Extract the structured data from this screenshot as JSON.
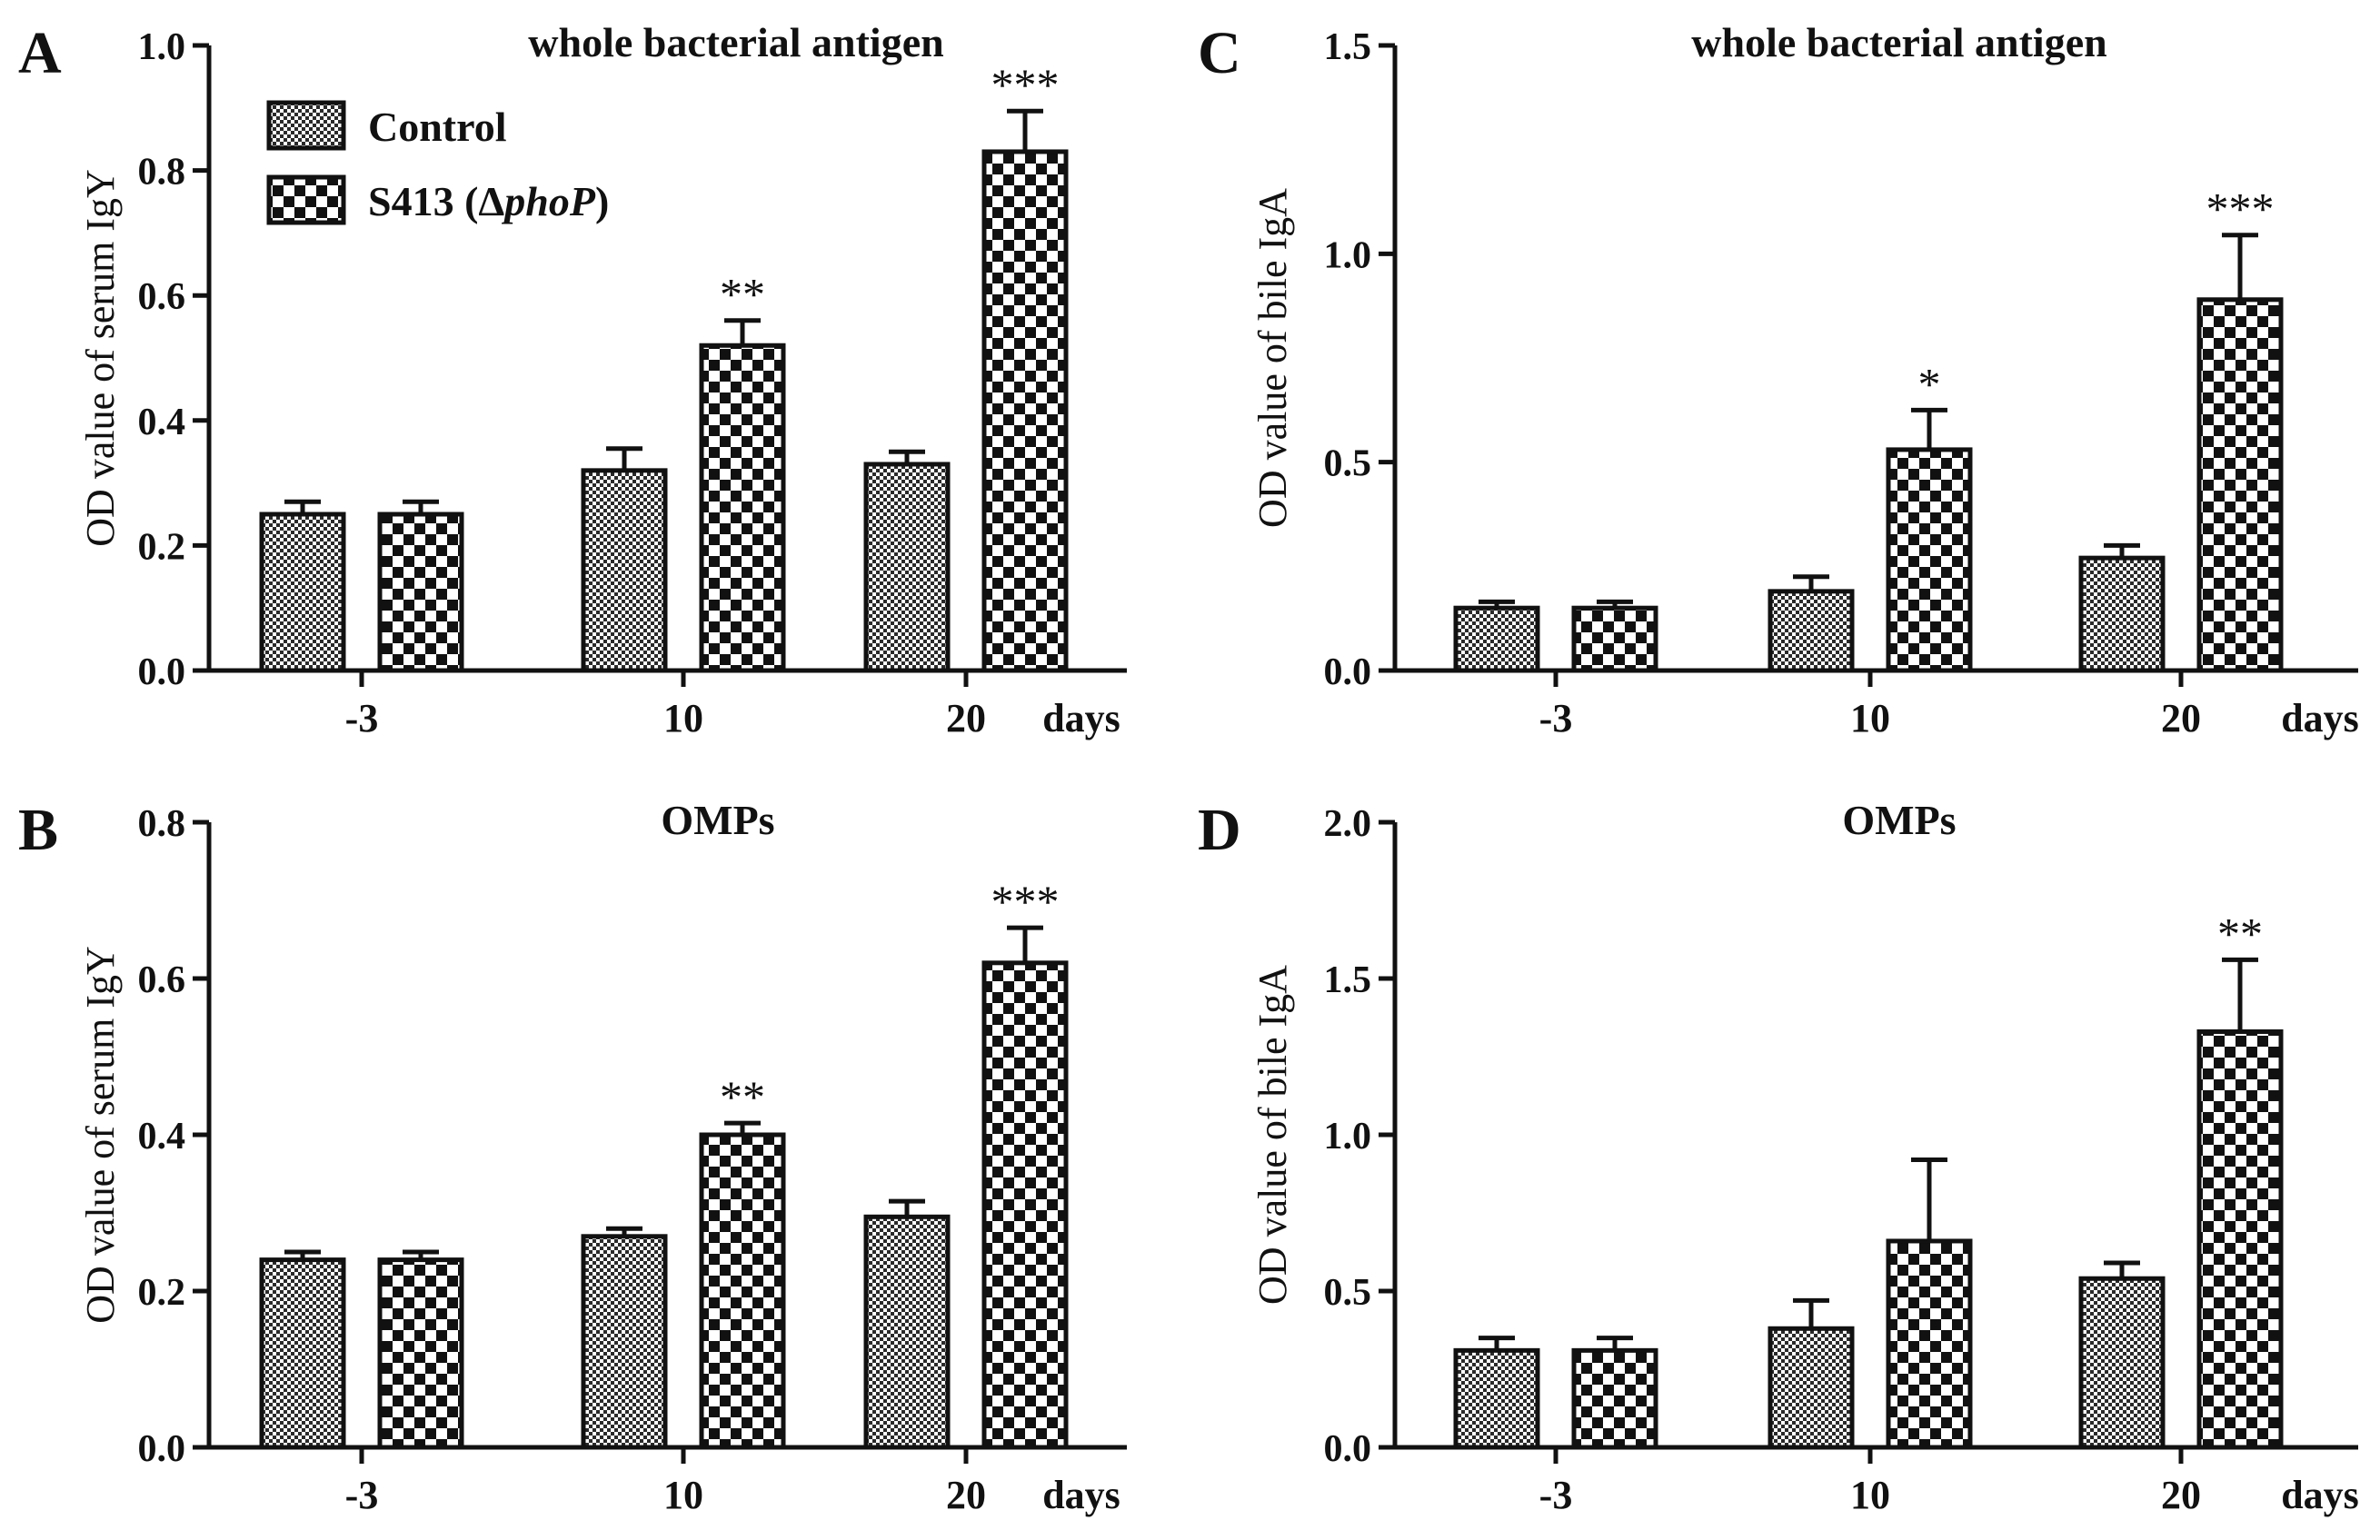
{
  "colors": {
    "ink": "#111111",
    "control_fill": "pattern-fine-check",
    "treated_fill": "pattern-coarse-check"
  },
  "legend": {
    "control_label": "Control",
    "treated_label_prefix": "S413 (Δ",
    "treated_label_italic": "phoP",
    "treated_label_suffix": ")"
  },
  "chart_data": [
    {
      "id": "A",
      "type": "bar",
      "title": "whole bacterial antigen",
      "ylabel": "OD value of serum IgY",
      "xunit": "days",
      "categories": [
        "-3",
        "10",
        "20"
      ],
      "ylim": [
        0,
        1.0
      ],
      "yticks": [
        "0.0",
        "0.2",
        "0.4",
        "0.6",
        "0.8",
        "1.0"
      ],
      "series": [
        {
          "name": "Control",
          "values": [
            0.25,
            0.32,
            0.33
          ],
          "errors": [
            0.02,
            0.035,
            0.02
          ]
        },
        {
          "name": "S413 (ΔphoP)",
          "values": [
            0.25,
            0.52,
            0.83
          ],
          "errors": [
            0.02,
            0.04,
            0.065
          ]
        }
      ],
      "significance": [
        "",
        "**",
        "***"
      ],
      "show_legend": true
    },
    {
      "id": "B",
      "type": "bar",
      "title": "OMPs",
      "ylabel": "OD value of serum IgY",
      "xunit": "days",
      "categories": [
        "-3",
        "10",
        "20"
      ],
      "ylim": [
        0,
        0.8
      ],
      "yticks": [
        "0.0",
        "0.2",
        "0.4",
        "0.6",
        "0.8"
      ],
      "series": [
        {
          "name": "Control",
          "values": [
            0.24,
            0.27,
            0.295
          ],
          "errors": [
            0.01,
            0.01,
            0.02
          ]
        },
        {
          "name": "S413 (ΔphoP)",
          "values": [
            0.24,
            0.4,
            0.62
          ],
          "errors": [
            0.01,
            0.015,
            0.045
          ]
        }
      ],
      "significance": [
        "",
        "**",
        "***"
      ],
      "show_legend": false
    },
    {
      "id": "C",
      "type": "bar",
      "title": "whole bacterial antigen",
      "ylabel": "OD value of bile IgA",
      "xunit": "days",
      "categories": [
        "-3",
        "10",
        "20"
      ],
      "ylim": [
        0,
        1.5
      ],
      "yticks": [
        "0.0",
        "0.5",
        "1.0",
        "1.5"
      ],
      "series": [
        {
          "name": "Control",
          "values": [
            0.15,
            0.19,
            0.27
          ],
          "errors": [
            0.015,
            0.035,
            0.03
          ]
        },
        {
          "name": "S413 (ΔphoP)",
          "values": [
            0.15,
            0.53,
            0.89
          ],
          "errors": [
            0.015,
            0.095,
            0.155
          ]
        }
      ],
      "significance": [
        "",
        "*",
        "***"
      ],
      "show_legend": false
    },
    {
      "id": "D",
      "type": "bar",
      "title": "OMPs",
      "ylabel": "OD value of bile IgA",
      "xunit": "days",
      "categories": [
        "-3",
        "10",
        "20"
      ],
      "ylim": [
        0,
        2.0
      ],
      "yticks": [
        "0.0",
        "0.5",
        "1.0",
        "1.5",
        "2.0"
      ],
      "series": [
        {
          "name": "Control",
          "values": [
            0.31,
            0.38,
            0.54
          ],
          "errors": [
            0.04,
            0.09,
            0.05
          ]
        },
        {
          "name": "S413 (ΔphoP)",
          "values": [
            0.31,
            0.66,
            1.33
          ],
          "errors": [
            0.04,
            0.26,
            0.23
          ]
        }
      ],
      "significance": [
        "",
        "",
        "**"
      ],
      "show_legend": false
    }
  ]
}
